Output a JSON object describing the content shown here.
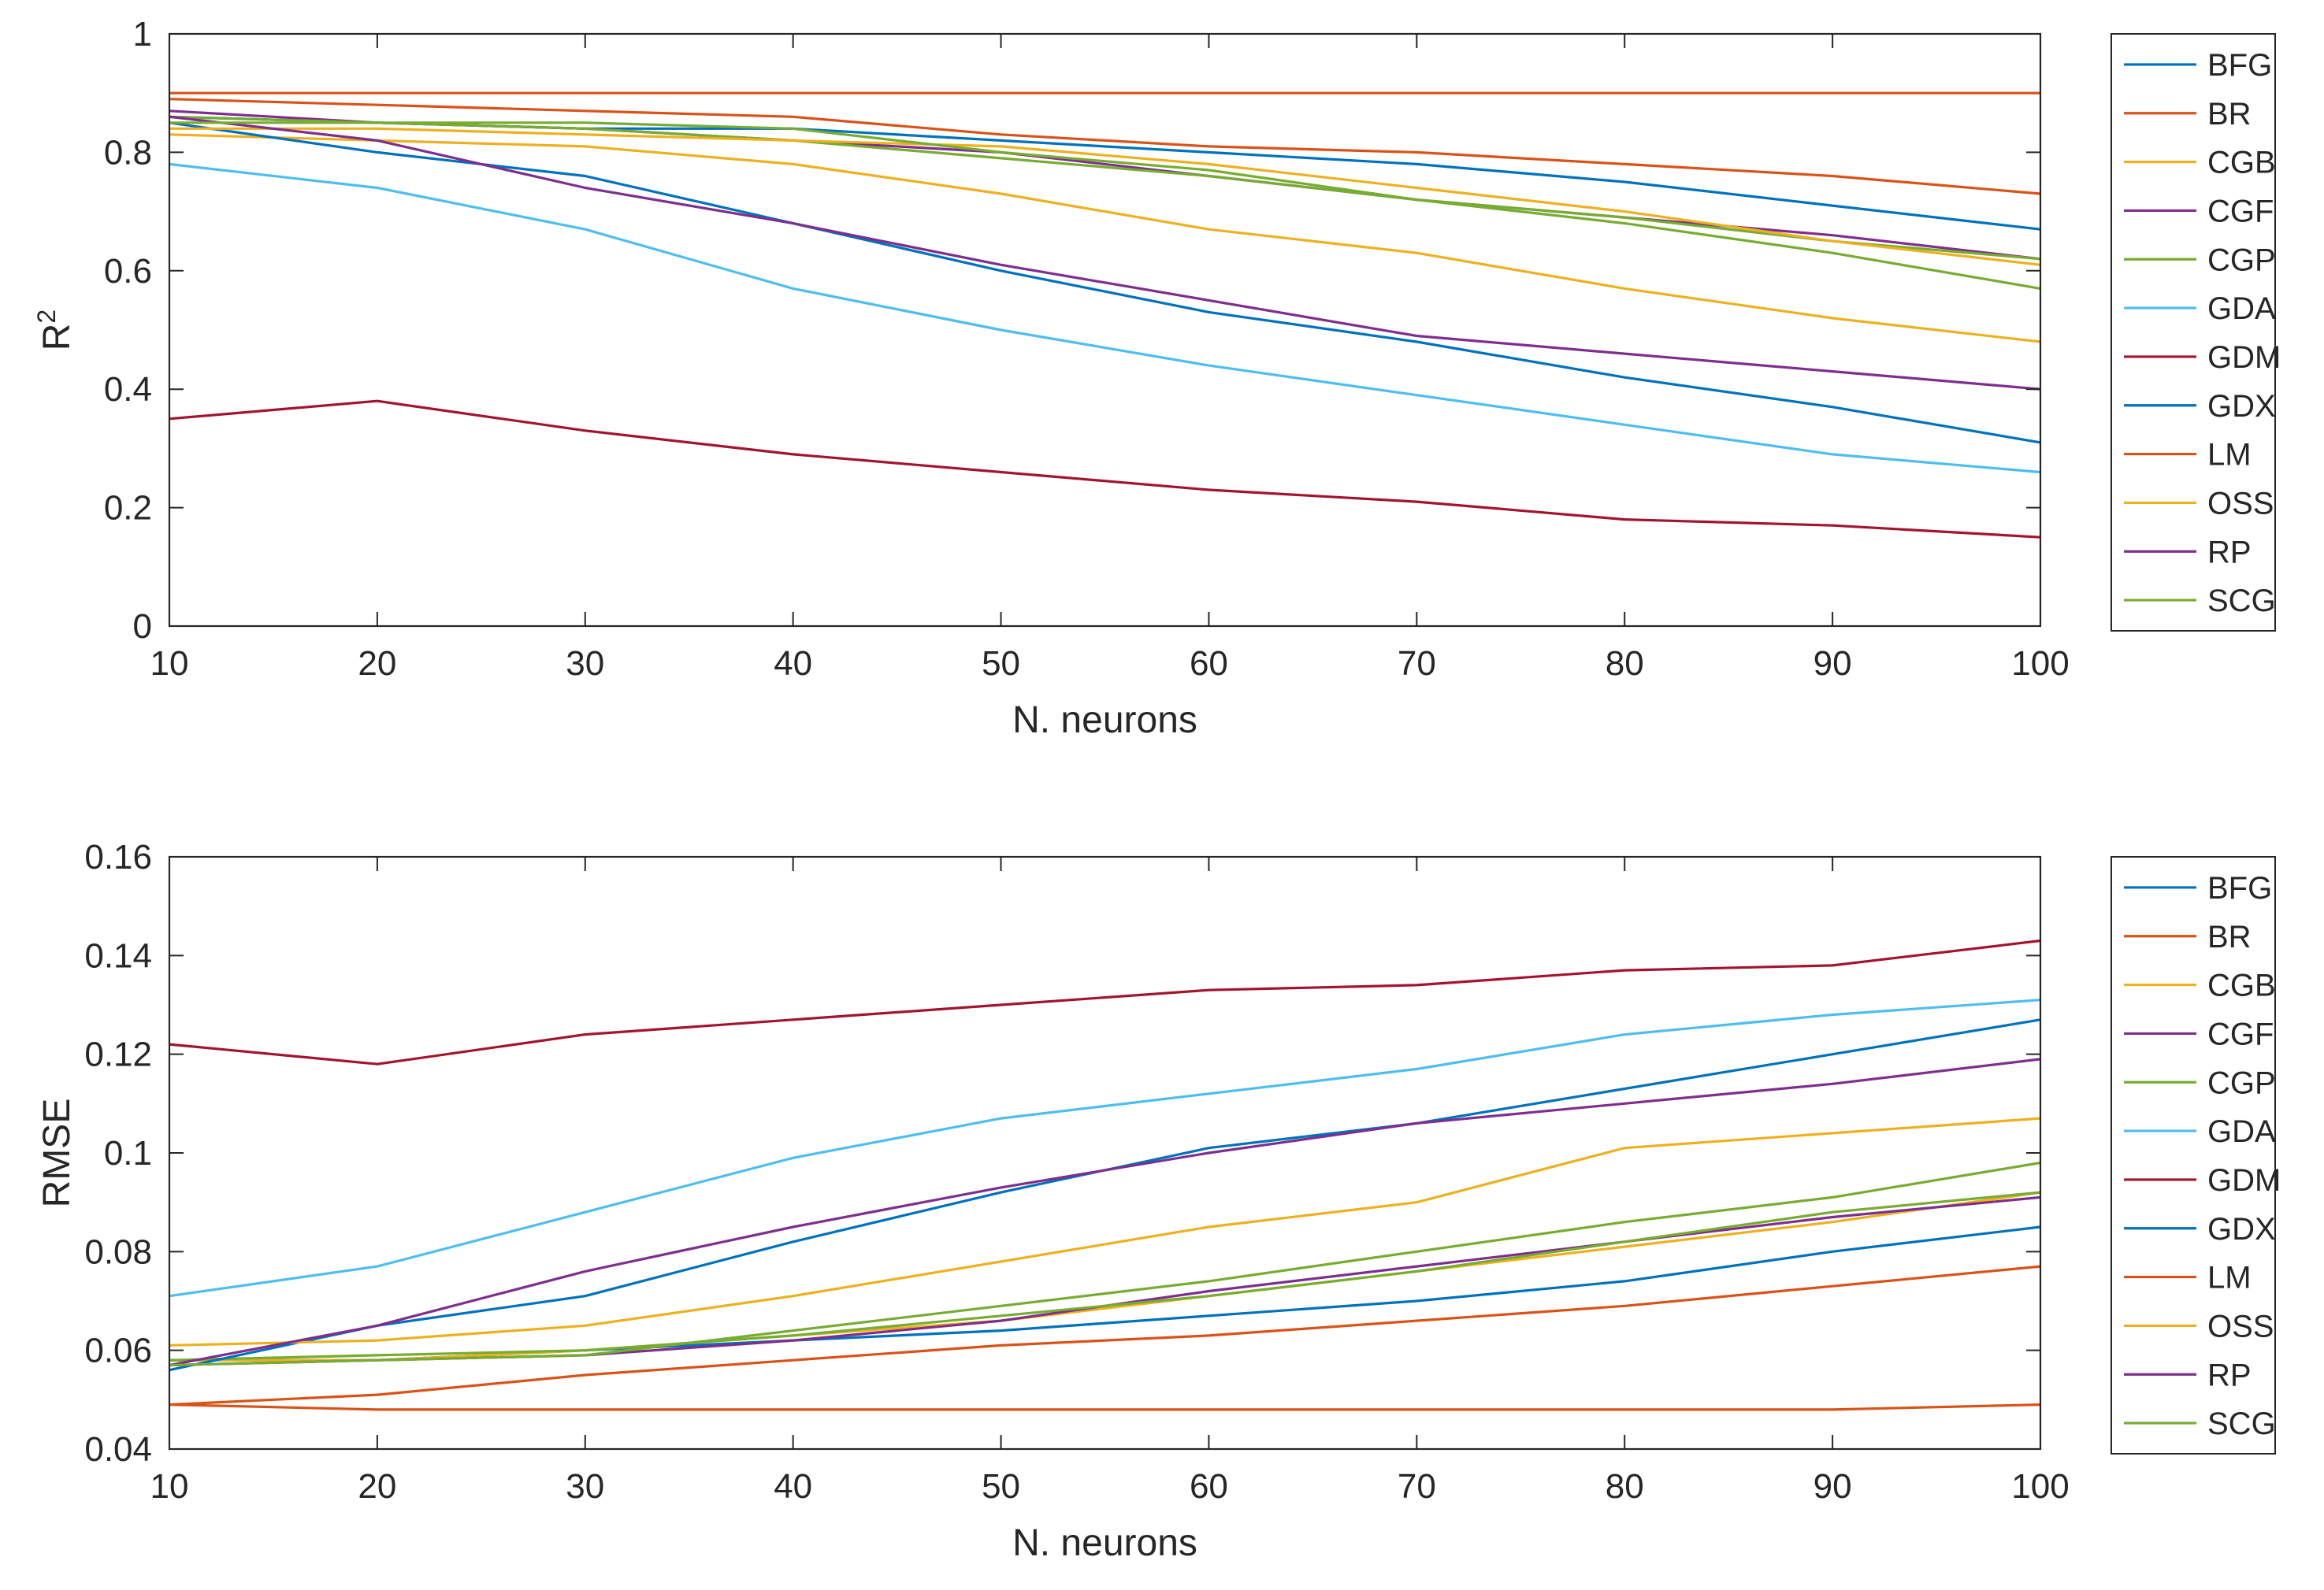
{
  "chart_data": [
    {
      "type": "line",
      "ylabel": "R",
      "ylabel_superscript": "2",
      "xlabel": "N. neurons",
      "xlim": [
        10,
        100
      ],
      "ylim": [
        0,
        1
      ],
      "xticks": [
        "10",
        "20",
        "30",
        "40",
        "50",
        "60",
        "70",
        "80",
        "90",
        "100"
      ],
      "yticks": [
        "0",
        "0.2",
        "0.4",
        "0.6",
        "0.8",
        "1"
      ],
      "grid": false,
      "legend_position": "outside-right",
      "x_points": [
        10,
        20,
        30,
        40,
        50,
        60,
        70,
        80,
        90,
        100
      ],
      "series": [
        {
          "name": "BFG",
          "color": "#0072BD",
          "values": [
            0.86,
            0.85,
            0.84,
            0.84,
            0.82,
            0.8,
            0.78,
            0.75,
            0.71,
            0.67
          ]
        },
        {
          "name": "BR",
          "color": "#D95319",
          "values": [
            0.9,
            0.9,
            0.9,
            0.9,
            0.9,
            0.9,
            0.9,
            0.9,
            0.9,
            0.9
          ]
        },
        {
          "name": "CGB",
          "color": "#EDB120",
          "values": [
            0.83,
            0.82,
            0.81,
            0.78,
            0.73,
            0.67,
            0.63,
            0.57,
            0.52,
            0.48
          ]
        },
        {
          "name": "CGF",
          "color": "#7E2F8E",
          "values": [
            0.87,
            0.85,
            0.84,
            0.82,
            0.8,
            0.76,
            0.72,
            0.69,
            0.66,
            0.62
          ]
        },
        {
          "name": "CGP",
          "color": "#77AC30",
          "values": [
            0.86,
            0.85,
            0.84,
            0.82,
            0.79,
            0.76,
            0.72,
            0.69,
            0.65,
            0.62
          ]
        },
        {
          "name": "GDA",
          "color": "#4DBEEE",
          "values": [
            0.78,
            0.74,
            0.67,
            0.57,
            0.5,
            0.44,
            0.39,
            0.34,
            0.29,
            0.26
          ]
        },
        {
          "name": "GDM",
          "color": "#A2142F",
          "values": [
            0.35,
            0.38,
            0.33,
            0.29,
            0.26,
            0.23,
            0.21,
            0.18,
            0.17,
            0.15
          ]
        },
        {
          "name": "GDX",
          "color": "#0072BD",
          "values": [
            0.85,
            0.8,
            0.76,
            0.68,
            0.6,
            0.53,
            0.48,
            0.42,
            0.37,
            0.31
          ]
        },
        {
          "name": "LM",
          "color": "#D95319",
          "values": [
            0.89,
            0.88,
            0.87,
            0.86,
            0.83,
            0.81,
            0.8,
            0.78,
            0.76,
            0.73
          ]
        },
        {
          "name": "OSS",
          "color": "#EDB120",
          "values": [
            0.84,
            0.84,
            0.83,
            0.82,
            0.81,
            0.78,
            0.74,
            0.7,
            0.65,
            0.61
          ]
        },
        {
          "name": "RP",
          "color": "#7E2F8E",
          "values": [
            0.86,
            0.82,
            0.74,
            0.68,
            0.61,
            0.55,
            0.49,
            0.46,
            0.43,
            0.4
          ]
        },
        {
          "name": "SCG",
          "color": "#77AC30",
          "values": [
            0.85,
            0.85,
            0.85,
            0.84,
            0.8,
            0.77,
            0.72,
            0.68,
            0.63,
            0.57
          ]
        }
      ]
    },
    {
      "type": "line",
      "ylabel": "RMSE",
      "xlabel": "N. neurons",
      "xlim": [
        10,
        100
      ],
      "ylim": [
        0.04,
        0.16
      ],
      "xticks": [
        "10",
        "20",
        "30",
        "40",
        "50",
        "60",
        "70",
        "80",
        "90",
        "100"
      ],
      "yticks": [
        "0.04",
        "0.06",
        "0.08",
        "0.1",
        "0.12",
        "0.14",
        "0.16"
      ],
      "grid": false,
      "legend_position": "outside-right",
      "x_points": [
        10,
        20,
        30,
        40,
        50,
        60,
        70,
        80,
        90,
        100
      ],
      "series": [
        {
          "name": "BFG",
          "color": "#0072BD",
          "values": [
            0.058,
            0.058,
            0.06,
            0.062,
            0.064,
            0.067,
            0.07,
            0.074,
            0.08,
            0.085
          ]
        },
        {
          "name": "BR",
          "color": "#D95319",
          "values": [
            0.049,
            0.048,
            0.048,
            0.048,
            0.048,
            0.048,
            0.048,
            0.048,
            0.048,
            0.049
          ]
        },
        {
          "name": "CGB",
          "color": "#EDB120",
          "values": [
            0.058,
            0.058,
            0.06,
            0.063,
            0.066,
            0.071,
            0.076,
            0.081,
            0.086,
            0.092
          ]
        },
        {
          "name": "CGF",
          "color": "#7E2F8E",
          "values": [
            0.057,
            0.058,
            0.059,
            0.062,
            0.066,
            0.072,
            0.077,
            0.082,
            0.087,
            0.091
          ]
        },
        {
          "name": "CGP",
          "color": "#77AC30",
          "values": [
            0.058,
            0.059,
            0.06,
            0.063,
            0.067,
            0.071,
            0.076,
            0.082,
            0.088,
            0.092
          ]
        },
        {
          "name": "GDA",
          "color": "#4DBEEE",
          "values": [
            0.071,
            0.077,
            0.088,
            0.099,
            0.107,
            0.112,
            0.117,
            0.124,
            0.128,
            0.131
          ]
        },
        {
          "name": "GDM",
          "color": "#A2142F",
          "values": [
            0.122,
            0.118,
            0.124,
            0.127,
            0.13,
            0.133,
            0.134,
            0.137,
            0.138,
            0.143
          ]
        },
        {
          "name": "GDX",
          "color": "#0072BD",
          "values": [
            0.056,
            0.065,
            0.071,
            0.082,
            0.092,
            0.101,
            0.106,
            0.113,
            0.12,
            0.127
          ]
        },
        {
          "name": "LM",
          "color": "#D95319",
          "values": [
            0.049,
            0.051,
            0.055,
            0.058,
            0.061,
            0.063,
            0.066,
            0.069,
            0.073,
            0.077
          ]
        },
        {
          "name": "OSS",
          "color": "#EDB120",
          "values": [
            0.061,
            0.062,
            0.065,
            0.071,
            0.078,
            0.085,
            0.09,
            0.101,
            0.104,
            0.107
          ]
        },
        {
          "name": "RP",
          "color": "#7E2F8E",
          "values": [
            0.057,
            0.065,
            0.076,
            0.085,
            0.093,
            0.1,
            0.106,
            0.11,
            0.114,
            0.119
          ]
        },
        {
          "name": "SCG",
          "color": "#77AC30",
          "values": [
            0.057,
            0.058,
            0.059,
            0.064,
            0.069,
            0.074,
            0.08,
            0.086,
            0.091,
            0.098
          ]
        }
      ]
    }
  ]
}
